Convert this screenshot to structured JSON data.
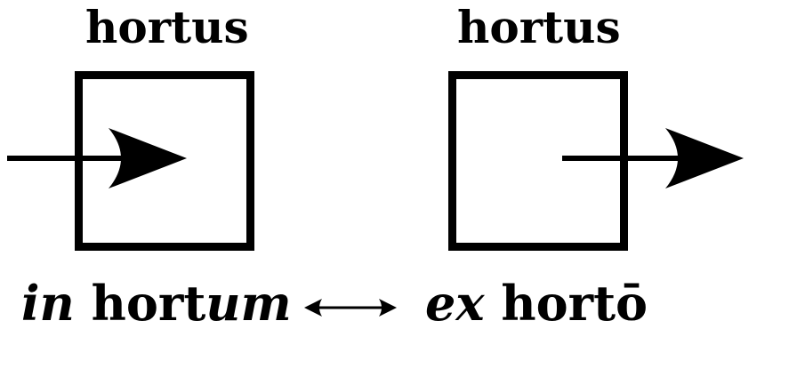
{
  "left_panel": {
    "title": "hortus",
    "phrase_prep": "in",
    "phrase_stem": "hort",
    "phrase_ending": "um"
  },
  "right_panel": {
    "title": "hortus",
    "phrase_prep": "ex",
    "phrase_word": "hortō"
  },
  "relation_symbol": "↔"
}
